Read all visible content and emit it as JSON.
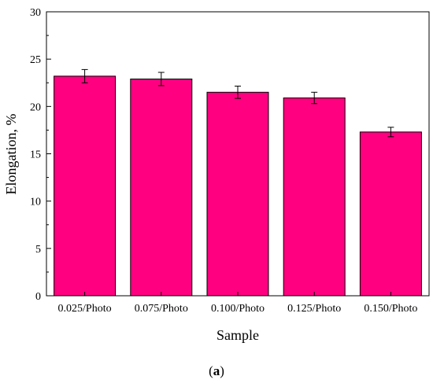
{
  "chart_data": {
    "type": "bar",
    "xlabel": "Sample",
    "ylabel": "Elongation, %",
    "categories": [
      "0.025/Photo",
      "0.075/Photo",
      "0.100/Photo",
      "0.125/Photo",
      "0.150/Photo"
    ],
    "values": [
      23.2,
      22.9,
      21.5,
      20.9,
      17.3
    ],
    "errors": [
      0.7,
      0.7,
      0.65,
      0.6,
      0.5
    ],
    "ylim": [
      0,
      30
    ],
    "yticks": [
      0,
      5,
      10,
      15,
      20,
      25,
      30
    ],
    "grid": false,
    "bar_color": "#FF0080"
  },
  "caption": {
    "open": "(",
    "letter": "a",
    "close": ")"
  }
}
